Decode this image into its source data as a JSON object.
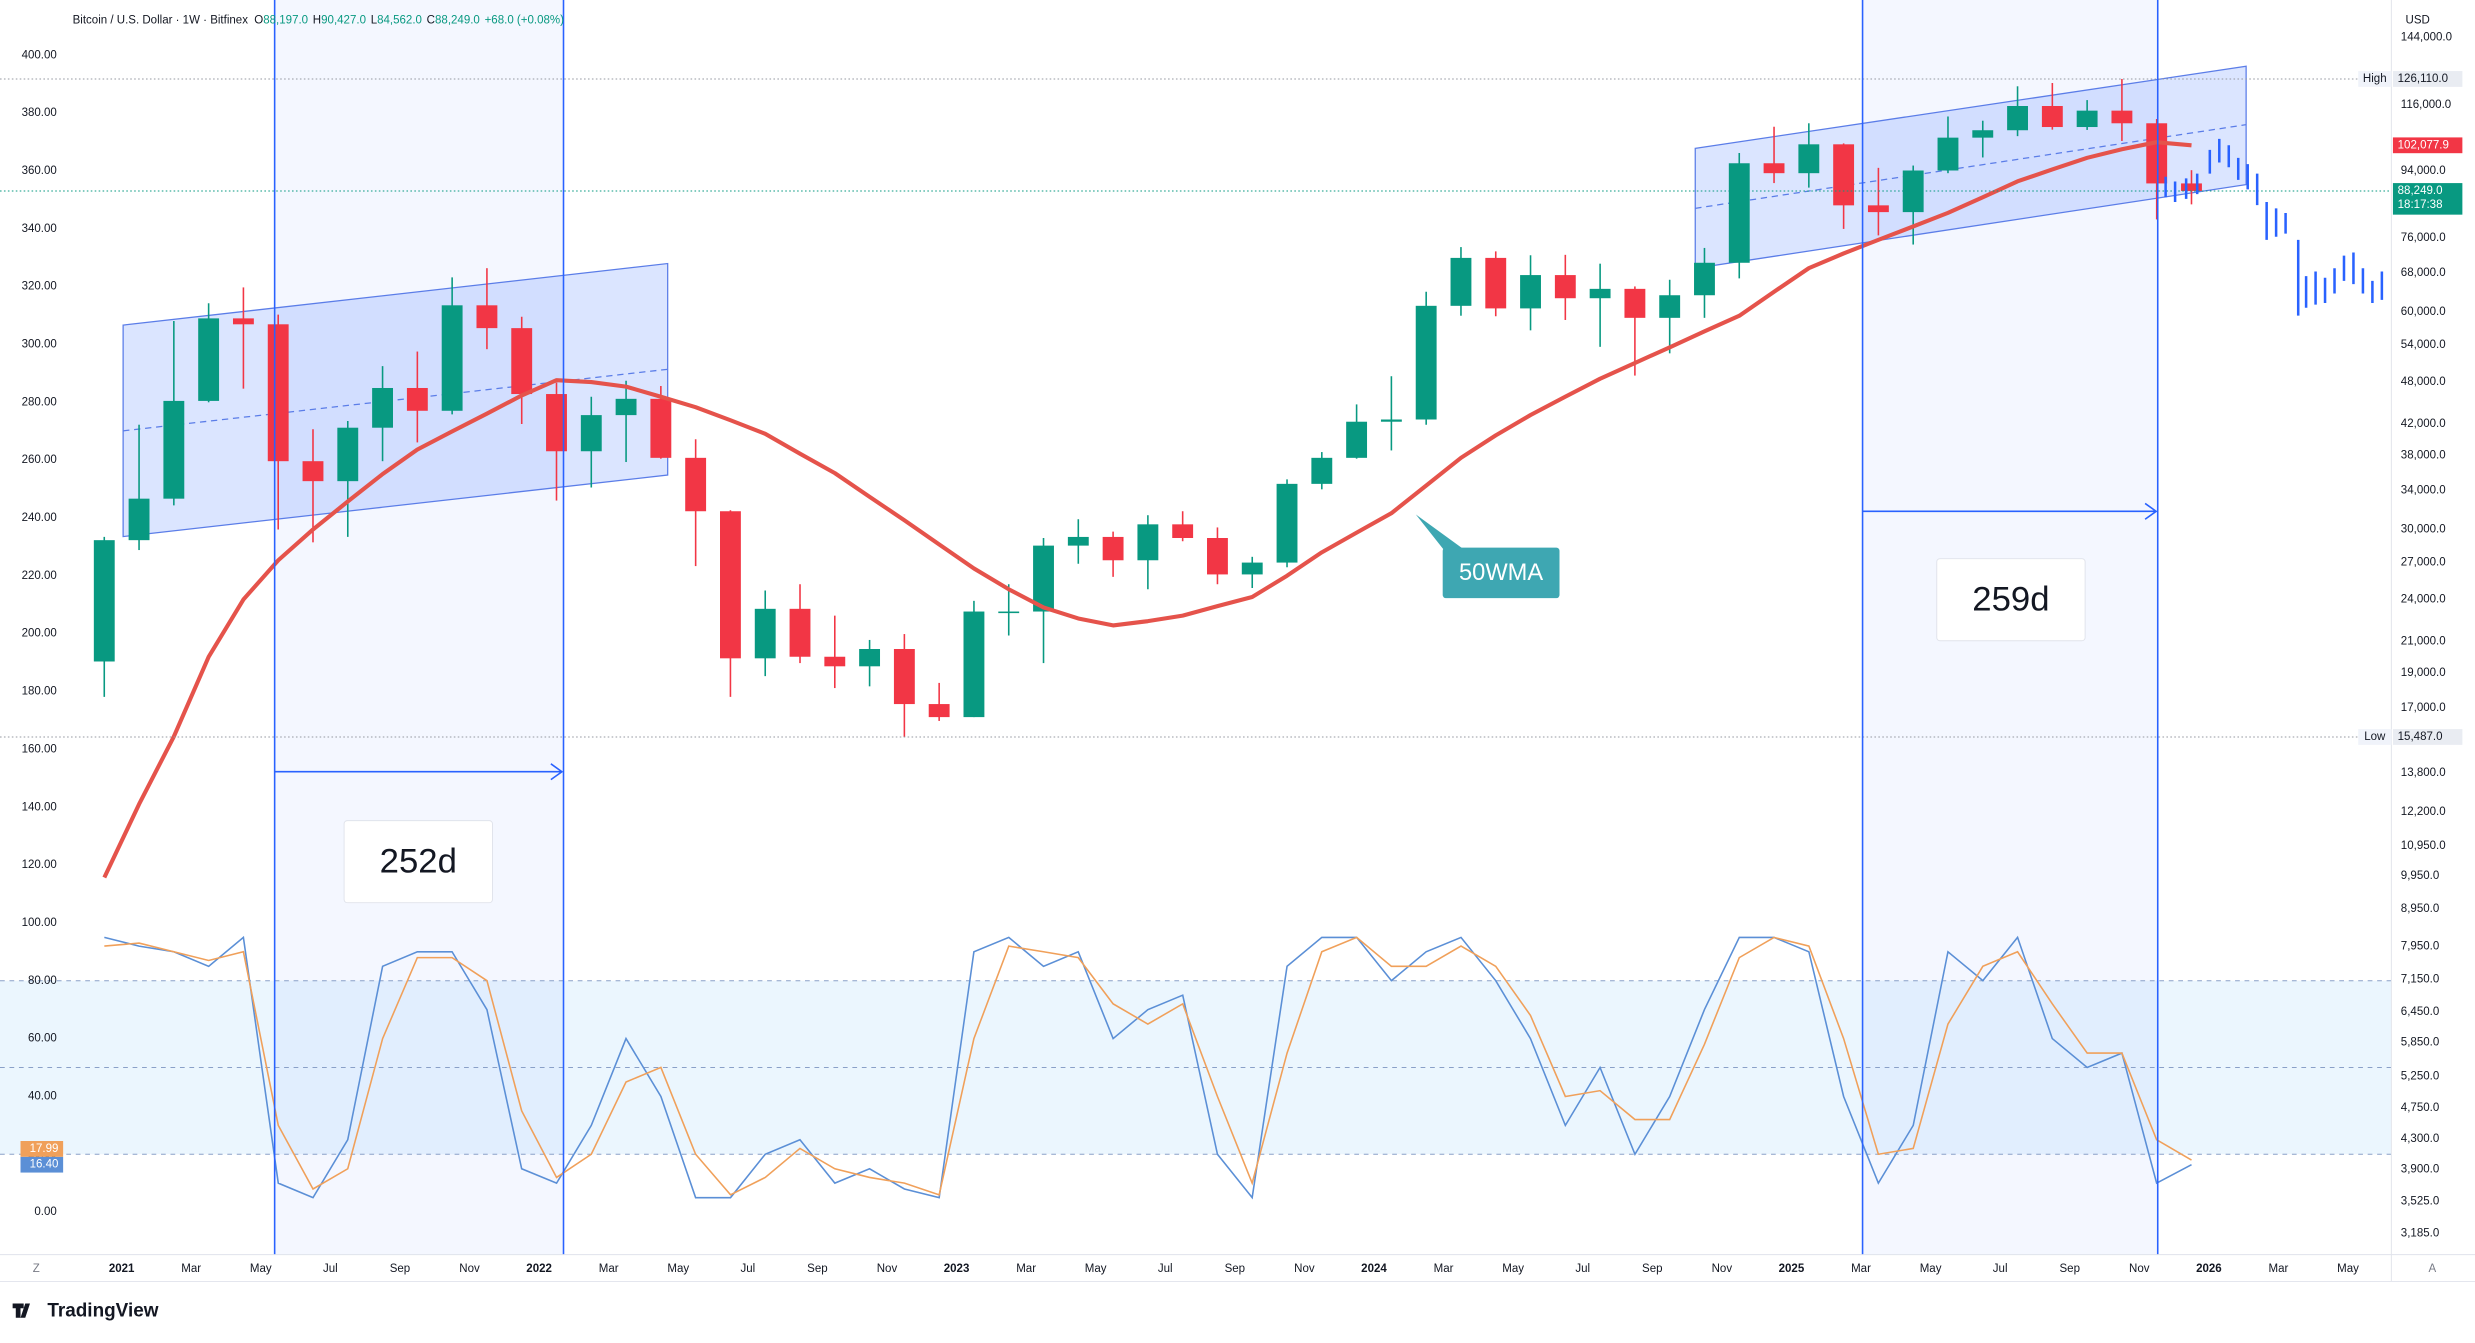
{
  "header": {
    "symbol": "Bitcoin / U.S. Dollar · 1W · Bitfinex",
    "ohlc": [
      {
        "key": "O",
        "value": "88,197.0"
      },
      {
        "key": "H",
        "value": "90,427.0"
      },
      {
        "key": "L",
        "value": "84,562.0"
      },
      {
        "key": "C",
        "value": "88,249.0"
      }
    ],
    "change": "+68.0 (+0.08%)"
  },
  "ui": {
    "currency": "USD",
    "timezone_button": "Z",
    "auto_button": "A",
    "brand": "TradingView"
  },
  "chart_data": {
    "type": "candlestick",
    "up_color": "#089981",
    "down_color": "#f23645",
    "grid": false,
    "log_scale": true,
    "x": [
      "2020-12",
      "2021-01",
      "2021-02",
      "2021-03",
      "2021-04",
      "2021-05",
      "2021-06",
      "2021-07",
      "2021-08",
      "2021-09",
      "2021-10",
      "2021-11",
      "2021-12",
      "2022-01",
      "2022-02",
      "2022-03",
      "2022-04",
      "2022-05",
      "2022-06",
      "2022-07",
      "2022-08",
      "2022-09",
      "2022-10",
      "2022-11",
      "2022-12",
      "2023-01",
      "2023-02",
      "2023-03",
      "2023-04",
      "2023-05",
      "2023-06",
      "2023-07",
      "2023-08",
      "2023-09",
      "2023-10",
      "2023-11",
      "2023-12",
      "2024-01",
      "2024-02",
      "2024-03",
      "2024-04",
      "2024-05",
      "2024-06",
      "2024-07",
      "2024-08",
      "2024-09",
      "2024-10",
      "2024-11",
      "2024-12",
      "2025-01",
      "2025-02",
      "2025-03",
      "2025-04",
      "2025-05",
      "2025-06",
      "2025-07",
      "2025-08",
      "2025-09",
      "2025-10",
      "2025-11",
      "2025-12"
    ],
    "open": [
      19700,
      29000,
      33100,
      45200,
      58800,
      57700,
      37300,
      35000,
      41500,
      47100,
      43800,
      61300,
      57000,
      46200,
      38500,
      43200,
      45500,
      37700,
      31800,
      19900,
      23300,
      20000,
      19400,
      20500,
      17200,
      16500,
      23100,
      23100,
      28500,
      29300,
      27200,
      30500,
      29200,
      26000,
      27000,
      34700,
      37700,
      42300,
      42600,
      61200,
      71300,
      60700,
      67500,
      62700,
      64600,
      58900,
      63300,
      70200,
      96400,
      93400,
      102400,
      84300,
      82500,
      94200,
      104600,
      107100,
      115700,
      108200,
      114000,
      109500,
      90400
    ],
    "high": [
      29300,
      41900,
      58300,
      61700,
      64900,
      59500,
      41300,
      42400,
      50500,
      52900,
      67000,
      69000,
      59100,
      47900,
      45800,
      48200,
      47400,
      40000,
      31900,
      24700,
      25200,
      22800,
      21100,
      21500,
      18400,
      23900,
      25200,
      29200,
      31000,
      29800,
      31400,
      31800,
      30200,
      27500,
      35200,
      38400,
      44700,
      48900,
      64000,
      73800,
      72800,
      71900,
      72000,
      70000,
      65100,
      66500,
      73600,
      99600,
      108300,
      109500,
      102700,
      95000,
      95700,
      111900,
      110400,
      123200,
      124500,
      117900,
      126110,
      111000,
      94300
    ],
    "low": [
      17600,
      28100,
      32400,
      45000,
      47000,
      30000,
      28800,
      29300,
      37300,
      39600,
      43300,
      53300,
      42000,
      32900,
      34300,
      37200,
      37600,
      26700,
      17600,
      18800,
      19600,
      18100,
      18200,
      15487,
      16300,
      16500,
      21400,
      19600,
      26900,
      25800,
      24800,
      28900,
      25200,
      24900,
      26600,
      34100,
      37600,
      38600,
      41900,
      59300,
      59200,
      56600,
      58500,
      53700,
      49000,
      52600,
      58900,
      66800,
      90500,
      89200,
      78200,
      76600,
      74400,
      93400,
      98200,
      105100,
      107300,
      107200,
      103500,
      80600,
      84562
    ],
    "close": [
      29000,
      33100,
      45200,
      58800,
      57700,
      37300,
      35000,
      41500,
      47100,
      43800,
      61300,
      57000,
      46200,
      38500,
      43200,
      45500,
      37700,
      31800,
      19900,
      23300,
      20000,
      19400,
      20500,
      17200,
      16500,
      23100,
      23100,
      28500,
      29300,
      27200,
      30500,
      29200,
      26000,
      27000,
      34700,
      37700,
      42300,
      42600,
      61200,
      71300,
      60700,
      67500,
      62700,
      64600,
      58900,
      63300,
      70200,
      96400,
      93400,
      102400,
      84300,
      82500,
      94200,
      104600,
      107100,
      115700,
      108200,
      114000,
      109500,
      90400,
      88249
    ],
    "xlim": [
      "2020-11",
      "2026-06"
    ],
    "xticks": [
      {
        "value": "2021-01",
        "label": "2021"
      },
      {
        "value": "2021-03",
        "label": "Mar"
      },
      {
        "value": "2021-05",
        "label": "May"
      },
      {
        "value": "2021-07",
        "label": "Jul"
      },
      {
        "value": "2021-09",
        "label": "Sep"
      },
      {
        "value": "2021-11",
        "label": "Nov"
      },
      {
        "value": "2022-01",
        "label": "2022"
      },
      {
        "value": "2022-03",
        "label": "Mar"
      },
      {
        "value": "2022-05",
        "label": "May"
      },
      {
        "value": "2022-07",
        "label": "Jul"
      },
      {
        "value": "2022-09",
        "label": "Sep"
      },
      {
        "value": "2022-11",
        "label": "Nov"
      },
      {
        "value": "2023-01",
        "label": "2023"
      },
      {
        "value": "2023-03",
        "label": "Mar"
      },
      {
        "value": "2023-05",
        "label": "May"
      },
      {
        "value": "2023-07",
        "label": "Jul"
      },
      {
        "value": "2023-09",
        "label": "Sep"
      },
      {
        "value": "2023-11",
        "label": "Nov"
      },
      {
        "value": "2024-01",
        "label": "2024"
      },
      {
        "value": "2024-03",
        "label": "Mar"
      },
      {
        "value": "2024-05",
        "label": "May"
      },
      {
        "value": "2024-07",
        "label": "Jul"
      },
      {
        "value": "2024-09",
        "label": "Sep"
      },
      {
        "value": "2024-11",
        "label": "Nov"
      },
      {
        "value": "2025-01",
        "label": "2025"
      },
      {
        "value": "2025-03",
        "label": "Mar"
      },
      {
        "value": "2025-05",
        "label": "May"
      },
      {
        "value": "2025-07",
        "label": "Jul"
      },
      {
        "value": "2025-09",
        "label": "Sep"
      },
      {
        "value": "2025-11",
        "label": "Nov"
      },
      {
        "value": "2026-01",
        "label": "2026"
      },
      {
        "value": "2026-03",
        "label": "Mar"
      },
      {
        "value": "2026-05",
        "label": "May"
      }
    ],
    "ylim": [
      2975,
      162200
    ],
    "yticks": [
      {
        "value": 144000,
        "label": "144,000.0"
      },
      {
        "value": 116000,
        "label": "116,000.0"
      },
      {
        "value": 94000,
        "label": "94,000.0"
      },
      {
        "value": 76000,
        "label": "76,000.0"
      },
      {
        "value": 68000,
        "label": "68,000.0"
      },
      {
        "value": 60000,
        "label": "60,000.0"
      },
      {
        "value": 54000,
        "label": "54,000.0"
      },
      {
        "value": 48000,
        "label": "48,000.0"
      },
      {
        "value": 42000,
        "label": "42,000.0"
      },
      {
        "value": 38000,
        "label": "38,000.0"
      },
      {
        "value": 34000,
        "label": "34,000.0"
      },
      {
        "value": 30000,
        "label": "30,000.0"
      },
      {
        "value": 27000,
        "label": "27,000.0"
      },
      {
        "value": 24000,
        "label": "24,000.0"
      },
      {
        "value": 21000,
        "label": "21,000.0"
      },
      {
        "value": 19000,
        "label": "19,000.0"
      },
      {
        "value": 17000,
        "label": "17,000.0"
      },
      {
        "value": 13800,
        "label": "13,800.0"
      },
      {
        "value": 12200,
        "label": "12,200.0"
      },
      {
        "value": 10950,
        "label": "10,950.0"
      },
      {
        "value": 9950,
        "label": "9,950.0"
      },
      {
        "value": 8950,
        "label": "8,950.0"
      },
      {
        "value": 7950,
        "label": "7,950.0"
      },
      {
        "value": 7150,
        "label": "7,150.0"
      },
      {
        "value": 6450,
        "label": "6,450.0"
      },
      {
        "value": 5850,
        "label": "5,850.0"
      },
      {
        "value": 5250,
        "label": "5,250.0"
      },
      {
        "value": 4750,
        "label": "4,750.0"
      },
      {
        "value": 4300,
        "label": "4,300.0"
      },
      {
        "value": 3900,
        "label": "3,900.0"
      },
      {
        "value": 3525,
        "label": "3,525.0"
      },
      {
        "value": 3185,
        "label": "3,185.0"
      }
    ],
    "price_markers": [
      {
        "name": "High",
        "value": 126110,
        "label": "126,110.0",
        "color": "#e9ecf2"
      },
      {
        "value": 102077.9,
        "label": "102,077.9",
        "color": "#f23645"
      },
      {
        "value": 88249,
        "label": "88,249.0",
        "countdown": "18:17:38",
        "color": "#089981"
      },
      {
        "name": "Low",
        "value": 15487,
        "label": "15,487.0",
        "color": "#e9ecf2"
      }
    ],
    "overlays": [
      {
        "name": "50WMA",
        "color": "#e5534b",
        "values": [
          9900,
          12500,
          15500,
          20000,
          24000,
          27200,
          30000,
          32800,
          35800,
          38700,
          41000,
          43400,
          46000,
          48300,
          48000,
          47300,
          45800,
          44300,
          42500,
          40700,
          38200,
          35900,
          33300,
          30900,
          28600,
          26500,
          24800,
          23400,
          22600,
          22100,
          22400,
          22800,
          23500,
          24200,
          25900,
          27900,
          29700,
          31600,
          34500,
          37700,
          40500,
          43200,
          45800,
          48500,
          51000,
          53600,
          56400,
          59300,
          64000,
          69000,
          72300,
          75500,
          78800,
          82300,
          86500,
          91000,
          94500,
          98100,
          100800,
          103100,
          102077.9
        ]
      }
    ],
    "y2lim": [
      -14.7,
      419.1
    ],
    "y2ticks": [
      {
        "value": 400,
        "label": "400.00"
      },
      {
        "value": 380,
        "label": "380.00"
      },
      {
        "value": 360,
        "label": "360.00"
      },
      {
        "value": 340,
        "label": "340.00"
      },
      {
        "value": 320,
        "label": "320.00"
      },
      {
        "value": 300,
        "label": "300.00"
      },
      {
        "value": 280,
        "label": "280.00"
      },
      {
        "value": 260,
        "label": "260.00"
      },
      {
        "value": 240,
        "label": "240.00"
      },
      {
        "value": 220,
        "label": "220.00"
      },
      {
        "value": 200,
        "label": "200.00"
      },
      {
        "value": 180,
        "label": "180.00"
      },
      {
        "value": 160,
        "label": "160.00"
      },
      {
        "value": 140,
        "label": "140.00"
      },
      {
        "value": 120,
        "label": "120.00"
      },
      {
        "value": 100,
        "label": "100.00"
      },
      {
        "value": 80,
        "label": "80.00"
      },
      {
        "value": 60,
        "label": "60.00"
      },
      {
        "value": 40,
        "label": "40.00"
      },
      {
        "value": 20,
        "label": "20.00"
      },
      {
        "value": 0,
        "label": "0.00"
      }
    ],
    "y2_bands": [
      80,
      50,
      20
    ],
    "series": [
      {
        "axis": "y2",
        "color": "#5b8fd6",
        "last_label": "16.40",
        "values": [
          95,
          92,
          90,
          85,
          95,
          10,
          5,
          25,
          85,
          90,
          90,
          70,
          15,
          10,
          30,
          60,
          40,
          5,
          5,
          20,
          25,
          10,
          15,
          8,
          5,
          90,
          95,
          85,
          90,
          60,
          70,
          75,
          20,
          5,
          85,
          95,
          95,
          80,
          90,
          95,
          80,
          60,
          30,
          50,
          20,
          40,
          70,
          95,
          95,
          90,
          40,
          10,
          30,
          90,
          80,
          95,
          60,
          50,
          55,
          10,
          16.4
        ]
      },
      {
        "axis": "y2",
        "color": "#f0a05a",
        "last_label": "17.99",
        "values": [
          92,
          93,
          90,
          87,
          90,
          30,
          8,
          15,
          60,
          88,
          88,
          80,
          35,
          12,
          20,
          45,
          50,
          20,
          6,
          12,
          22,
          15,
          12,
          10,
          6,
          60,
          92,
          90,
          88,
          72,
          65,
          72,
          40,
          10,
          55,
          90,
          95,
          85,
          85,
          92,
          85,
          68,
          40,
          42,
          32,
          32,
          58,
          88,
          95,
          92,
          60,
          20,
          22,
          65,
          85,
          90,
          72,
          55,
          55,
          25,
          17.99
        ]
      }
    ],
    "annotations": [
      "252d",
      "259d",
      "50WMA"
    ]
  }
}
